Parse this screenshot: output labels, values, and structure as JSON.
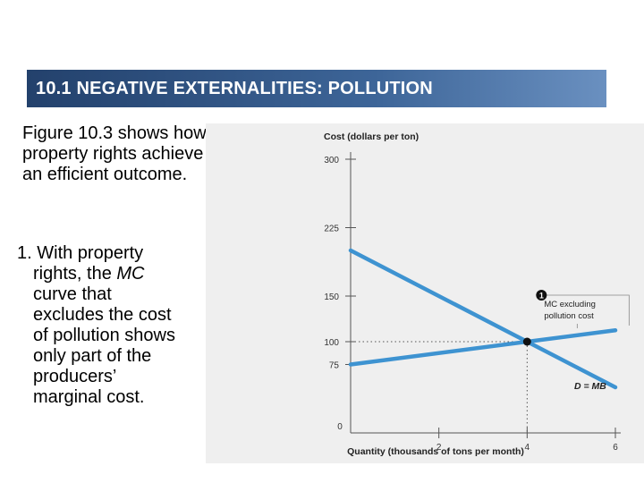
{
  "slide": {
    "title": "10.1 NEGATIVE EXTERNALITIES: POLLUTION",
    "para1": "Figure 10.3 shows how property rights achieve an efficient outcome.",
    "para2_number": "1.",
    "para2_lines": [
      "With property",
      "rights, the",
      "curve that",
      "excludes the cost",
      "of pollution shows",
      "only part of the",
      "producers’",
      "marginal cost."
    ],
    "para2_mc": "MC"
  },
  "colors": {
    "title_bg": "#2f5587",
    "curve": "#3e93d1",
    "chart_bg": "#efefef"
  },
  "chart_data": {
    "type": "line",
    "title": "",
    "ylabel": "Cost (dollars per ton)",
    "xlabel": "Quantity (thousands of tons per month)",
    "xlim": [
      0,
      6
    ],
    "ylim": [
      0,
      300
    ],
    "x_ticks": [
      "0",
      "2",
      "4",
      "6"
    ],
    "y_ticks": [
      "300",
      "225",
      "150",
      "100",
      "75"
    ],
    "series": [
      {
        "name": "D = MB",
        "x": [
          0,
          6
        ],
        "y": [
          200,
          50
        ]
      },
      {
        "name": "MC excluding pollution cost",
        "x": [
          0,
          6
        ],
        "y": [
          75,
          112.5
        ]
      }
    ],
    "equilibrium": {
      "x": 4,
      "y": 100
    },
    "callout_number": "1",
    "label_mc_line1": "MC excluding",
    "label_mc_line2": "pollution cost",
    "label_demand": "D = MB"
  }
}
